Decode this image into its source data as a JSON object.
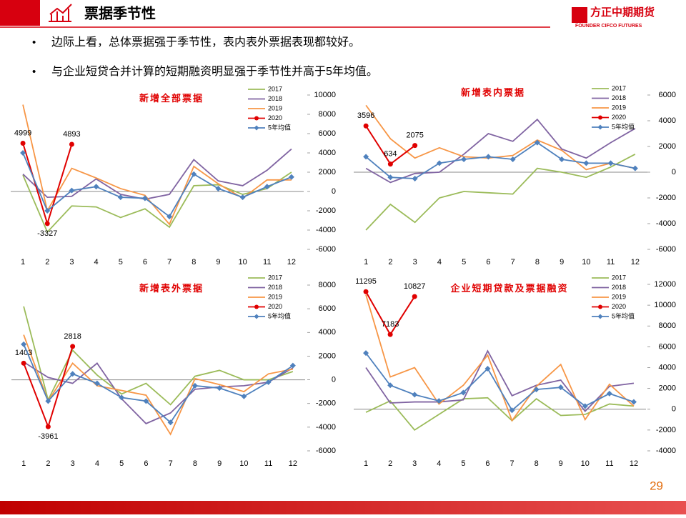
{
  "header": {
    "title": "票据季节性"
  },
  "logo": {
    "name": "方正中期期货",
    "subtitle": "FOUNDER CIFCO FUTURES"
  },
  "bullets": [
    "边际上看，总体票据强于季节性，表内表外票据表现都较好。",
    "与企业短贷合并计算的短期融资明显强于季节性并高于5年均值。"
  ],
  "page_number": "29",
  "chart_data": [
    {
      "type": "line",
      "title": "新增全部票据",
      "categories": [
        "1",
        "2",
        "3",
        "4",
        "5",
        "6",
        "7",
        "8",
        "9",
        "10",
        "11",
        "12"
      ],
      "ylim": [
        -6000,
        10000
      ],
      "yticks": [
        -6000,
        -4000,
        -2000,
        0,
        2000,
        4000,
        6000,
        8000,
        10000
      ],
      "y_axis_side": "right",
      "series": [
        {
          "name": "2017",
          "color": "#9bbb59",
          "values": [
            1700,
            -4200,
            -1500,
            -1600,
            -2700,
            -1800,
            -3700,
            600,
            700,
            -300,
            300,
            2000
          ]
        },
        {
          "name": "2018",
          "color": "#8064a2",
          "values": [
            1800,
            -600,
            -500,
            1300,
            -300,
            -800,
            -300,
            3300,
            1100,
            600,
            2200,
            4400
          ]
        },
        {
          "name": "2019",
          "color": "#f79646",
          "values": [
            9000,
            -2000,
            2400,
            1400,
            300,
            -400,
            -3400,
            2600,
            800,
            -700,
            1200,
            1200
          ]
        },
        {
          "name": "2020",
          "color": "#e00000",
          "marker": "circle",
          "data_labels": true,
          "values": [
            4999,
            -3327,
            4893,
            null,
            null,
            null,
            null,
            null,
            null,
            null,
            null,
            null
          ]
        },
        {
          "name": "5年均值",
          "color": "#4f81bd",
          "marker": "diamond",
          "values": [
            4000,
            -2000,
            100,
            500,
            -600,
            -700,
            -2600,
            1800,
            300,
            -600,
            500,
            1500
          ]
        }
      ]
    },
    {
      "type": "line",
      "title": "新增表内票据",
      "categories": [
        "1",
        "2",
        "3",
        "4",
        "5",
        "6",
        "7",
        "8",
        "9",
        "10",
        "11",
        "12"
      ],
      "ylim": [
        -6000,
        6000
      ],
      "yticks": [
        -6000,
        -4000,
        -2000,
        0,
        2000,
        4000,
        6000
      ],
      "y_axis_side": "right",
      "series": [
        {
          "name": "2017",
          "color": "#9bbb59",
          "values": [
            -4500,
            -2500,
            -3900,
            -2000,
            -1500,
            -1600,
            -1700,
            300,
            0,
            -400,
            400,
            1400
          ]
        },
        {
          "name": "2018",
          "color": "#8064a2",
          "values": [
            300,
            -800,
            -100,
            0,
            1400,
            3000,
            2400,
            4100,
            1800,
            1100,
            2300,
            3400
          ]
        },
        {
          "name": "2019",
          "color": "#f79646",
          "values": [
            5200,
            2600,
            1100,
            1900,
            1200,
            1100,
            1300,
            2500,
            1700,
            200,
            700,
            300
          ]
        },
        {
          "name": "2020",
          "color": "#e00000",
          "marker": "circle",
          "data_labels": true,
          "values": [
            3596,
            634,
            2075,
            null,
            null,
            null,
            null,
            null,
            null,
            null,
            null,
            null
          ]
        },
        {
          "name": "5年均值",
          "color": "#4f81bd",
          "marker": "diamond",
          "values": [
            1200,
            -400,
            -500,
            700,
            1000,
            1200,
            1000,
            2300,
            1000,
            700,
            700,
            300
          ]
        }
      ]
    },
    {
      "type": "line",
      "title": "新增表外票据",
      "categories": [
        "1",
        "2",
        "3",
        "4",
        "5",
        "6",
        "7",
        "8",
        "9",
        "10",
        "11",
        "12"
      ],
      "ylim": [
        -6000,
        8000
      ],
      "yticks": [
        -6000,
        -4000,
        -2000,
        0,
        2000,
        4000,
        6000,
        8000
      ],
      "y_axis_side": "right",
      "series": [
        {
          "name": "2017",
          "color": "#9bbb59",
          "values": [
            6200,
            -1700,
            2500,
            400,
            -1200,
            -300,
            -2100,
            300,
            800,
            0,
            0,
            700
          ]
        },
        {
          "name": "2018",
          "color": "#8064a2",
          "values": [
            1500,
            200,
            -300,
            1400,
            -1600,
            -3700,
            -2800,
            -800,
            -600,
            -500,
            -200,
            1000
          ]
        },
        {
          "name": "2019",
          "color": "#f79646",
          "values": [
            3800,
            -1800,
            1400,
            -500,
            -900,
            -1300,
            -4600,
            100,
            -400,
            -1000,
            500,
            900
          ]
        },
        {
          "name": "2020",
          "color": "#e00000",
          "marker": "circle",
          "data_labels": true,
          "values": [
            1403,
            -3961,
            2818,
            null,
            null,
            null,
            null,
            null,
            null,
            null,
            null,
            null
          ]
        },
        {
          "name": "5年均值",
          "color": "#4f81bd",
          "marker": "diamond",
          "values": [
            3000,
            -1800,
            500,
            -300,
            -1500,
            -1800,
            -3600,
            -500,
            -700,
            -1400,
            -200,
            1200
          ]
        }
      ]
    },
    {
      "type": "line",
      "title": "企业短期贷款及票据融资",
      "categories": [
        "1",
        "2",
        "3",
        "4",
        "5",
        "6",
        "7",
        "8",
        "9",
        "10",
        "11",
        "12"
      ],
      "ylim": [
        -4000,
        12000
      ],
      "yticks": [
        -4000,
        -2000,
        0,
        2000,
        4000,
        6000,
        8000,
        10000,
        12000
      ],
      "y_axis_side": "right",
      "series": [
        {
          "name": "2017",
          "color": "#9bbb59",
          "values": [
            -300,
            800,
            -2000,
            -500,
            1000,
            1100,
            -1100,
            1000,
            -600,
            -500,
            500,
            300
          ]
        },
        {
          "name": "2018",
          "color": "#8064a2",
          "values": [
            4000,
            600,
            700,
            700,
            900,
            5600,
            1300,
            2300,
            2800,
            -200,
            2200,
            2500
          ]
        },
        {
          "name": "2019",
          "color": "#f79646",
          "values": [
            11000,
            3100,
            4000,
            500,
            2300,
            5200,
            -1100,
            2200,
            4300,
            -1000,
            2400,
            300
          ]
        },
        {
          "name": "2020",
          "color": "#e00000",
          "marker": "circle",
          "data_labels": true,
          "values": [
            11295,
            7183,
            10827,
            null,
            null,
            null,
            null,
            null,
            null,
            null,
            null,
            null
          ]
        },
        {
          "name": "5年均值",
          "color": "#4f81bd",
          "marker": "diamond",
          "values": [
            5400,
            2300,
            1400,
            800,
            1600,
            3900,
            -100,
            1900,
            2100,
            300,
            1500,
            700
          ]
        }
      ]
    }
  ]
}
